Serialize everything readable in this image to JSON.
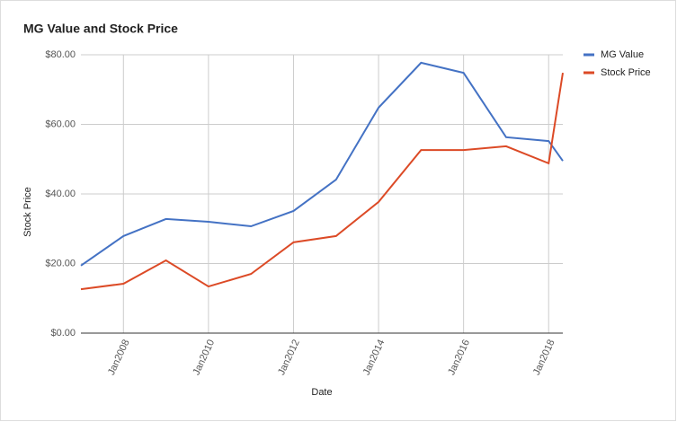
{
  "chart_data": {
    "type": "line",
    "title": "MG Value and Stock Price",
    "x_label": "Date",
    "y_label": "Stock Price",
    "x": [
      "2007-01",
      "2008-01",
      "2009-01",
      "2010-01",
      "2011-01",
      "2012-01",
      "2013-01",
      "2014-01",
      "2015-01",
      "2016-01",
      "2017-01",
      "2018-01",
      "2018-05"
    ],
    "xlim": [
      "2007-01",
      "2018-05"
    ],
    "xticks": [
      {
        "value": "2008-01",
        "label": "Jan2008"
      },
      {
        "value": "2010-01",
        "label": "Jan2010"
      },
      {
        "value": "2012-01",
        "label": "Jan2012"
      },
      {
        "value": "2014-01",
        "label": "Jan2014"
      },
      {
        "value": "2016-01",
        "label": "Jan2016"
      },
      {
        "value": "2018-01",
        "label": "Jan2018"
      }
    ],
    "ylim": [
      0,
      80
    ],
    "yticks": [
      {
        "value": 0,
        "label": "$0.00"
      },
      {
        "value": 20,
        "label": "$20.00"
      },
      {
        "value": 40,
        "label": "$40.00"
      },
      {
        "value": 60,
        "label": "$60.00"
      },
      {
        "value": 80,
        "label": "$80.00"
      }
    ],
    "grid": true,
    "legend": "right",
    "series": [
      {
        "name": "MG Value",
        "color": "#4472c4",
        "values": [
          19.4,
          27.9,
          32.8,
          32.0,
          30.7,
          35.1,
          44.1,
          64.8,
          77.7,
          74.8,
          56.3,
          55.2,
          49.5
        ]
      },
      {
        "name": "Stock Price",
        "color": "#dc4a26",
        "values": [
          12.6,
          14.2,
          20.9,
          13.4,
          17.0,
          26.1,
          27.9,
          37.7,
          52.6,
          52.6,
          53.7,
          48.8,
          74.8
        ]
      }
    ]
  }
}
